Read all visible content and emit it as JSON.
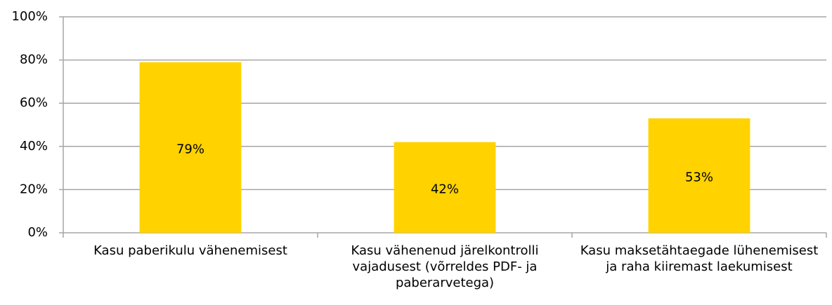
{
  "chart_data": {
    "type": "bar",
    "categories": [
      "Kasu paberikulu vähenemisest",
      "Kasu vähenenud järelkontrolli vajadusest (võrreldes PDF- ja paberarvetega)",
      "Kasu maksetähtaegade lühenemisest ja raha kiiremast laekumisest"
    ],
    "values": [
      79,
      42,
      53
    ],
    "value_labels": [
      "79%",
      "42%",
      "53%"
    ],
    "color": "#ffd200",
    "ylim": [
      0,
      100
    ],
    "yticks": [
      {
        "value": 0,
        "label": "0%"
      },
      {
        "value": 20,
        "label": "20%"
      },
      {
        "value": 40,
        "label": "40%"
      },
      {
        "value": 60,
        "label": "60%"
      },
      {
        "value": 80,
        "label": "80%"
      },
      {
        "value": 100,
        "label": "100%"
      }
    ],
    "grid": true
  }
}
